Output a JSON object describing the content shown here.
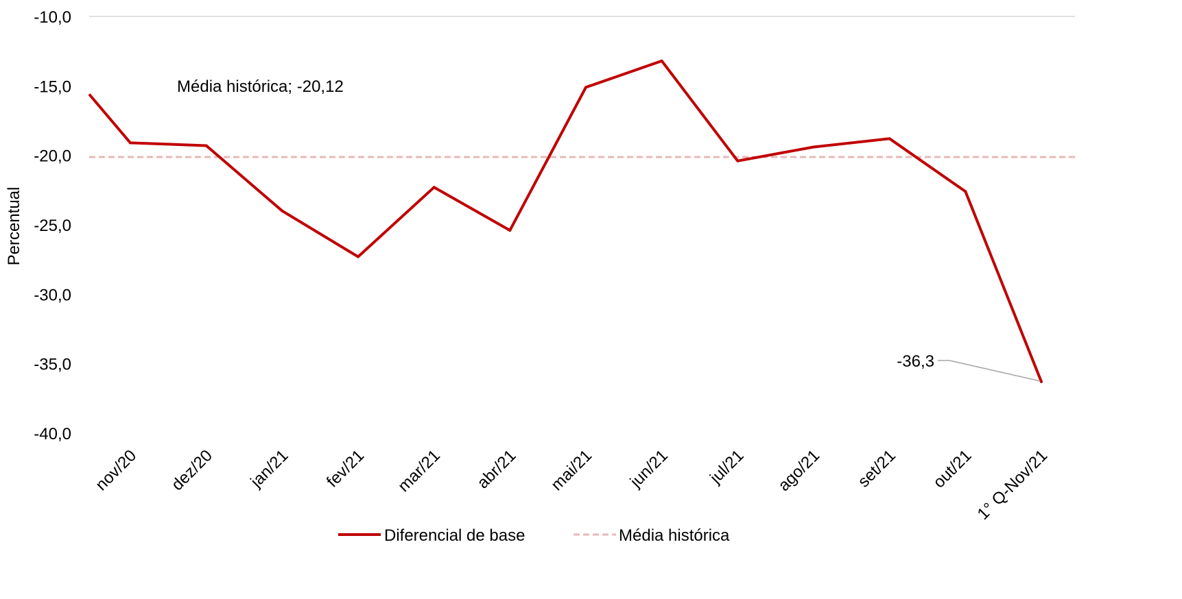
{
  "chart_data": {
    "type": "line",
    "categories": [
      "nov/20",
      "dez/20",
      "jan/21",
      "fev/21",
      "mar/21",
      "abr/21",
      "mai/21",
      "jun/21",
      "jul/21",
      "ago/21",
      "set/21",
      "out/21",
      "1° Q-Nov/21"
    ],
    "ylabel": "Percentual",
    "ylim": [
      -40,
      -10
    ],
    "yticks": [
      -10,
      -15,
      -20,
      -25,
      -30,
      -35,
      -40
    ],
    "ytick_labels": [
      "-10,0",
      "-15,0",
      "-20,0",
      "-25,0",
      "-30,0",
      "-35,0",
      "-40,0"
    ],
    "series": [
      {
        "name": "Diferencial de base",
        "color": "#C00000",
        "style": "solid",
        "values": [
          -19.1,
          -19.3,
          -24.0,
          -27.3,
          -22.3,
          -25.4,
          -15.1,
          -13.2,
          -20.4,
          -19.4,
          -18.8,
          -22.6,
          -36.3
        ]
      },
      {
        "name": "Média histórica",
        "color": "#E6B9B8",
        "style": "dashed",
        "values": [
          -20.12,
          -20.12,
          -20.12,
          -20.12,
          -20.12,
          -20.12,
          -20.12,
          -20.12,
          -20.12,
          -20.12,
          -20.12,
          -20.12,
          -20.12
        ]
      }
    ],
    "start_value": -15.6,
    "annotations": {
      "media_label": "Média histórica; -20,12",
      "last_value_label": "-36,3"
    },
    "grid": {
      "top_line_only": true
    },
    "legend_position": "bottom"
  }
}
